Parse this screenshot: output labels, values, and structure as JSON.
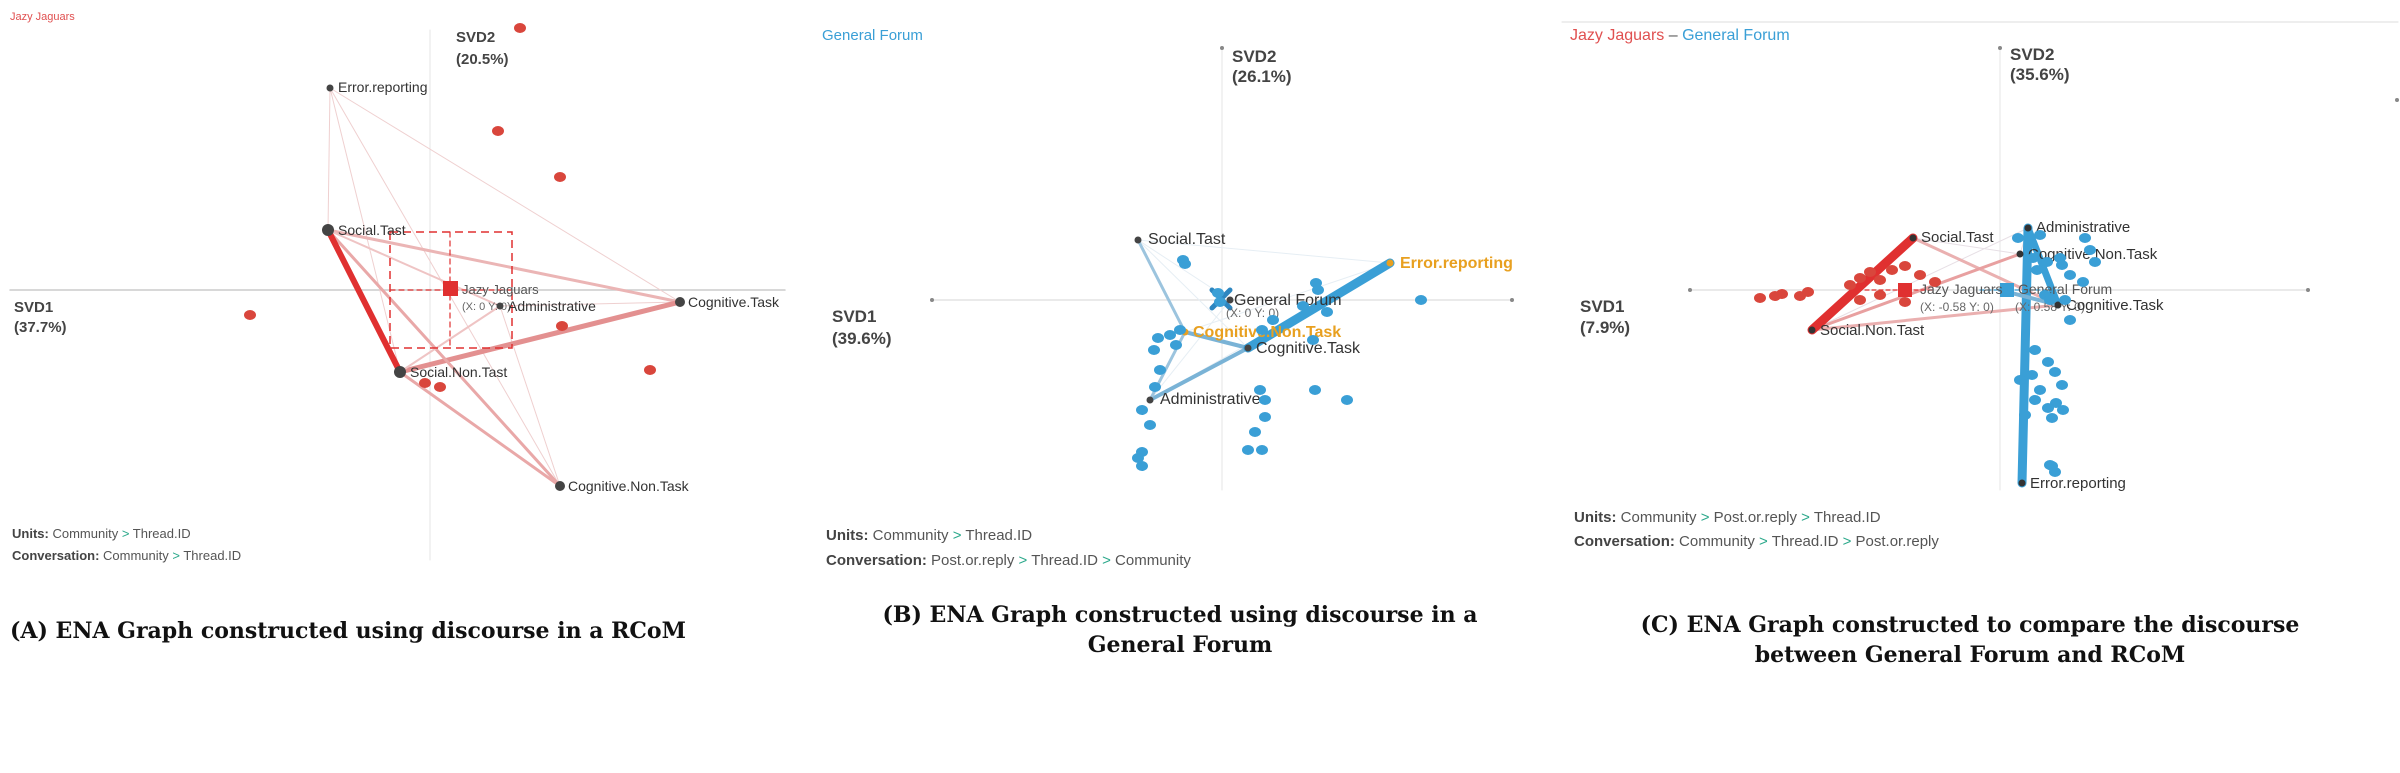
{
  "panels": [
    {
      "id": "a",
      "header_parts": [
        {
          "text": "Jazy Jaguars",
          "color": "#e05050"
        }
      ],
      "svd1": {
        "label": "SVD1",
        "pct": "(37.7%)"
      },
      "svd2": {
        "label": "SVD2",
        "pct": "(20.5%)"
      },
      "nodes": [
        {
          "label": "Error.reporting",
          "color": "#333333"
        },
        {
          "label": "Social.Tast",
          "color": "#333333"
        },
        {
          "label": "Administrative",
          "color": "#333333"
        },
        {
          "label": "Cognitive.Task",
          "color": "#333333"
        },
        {
          "label": "Social.Non.Tast",
          "color": "#333333"
        },
        {
          "label": "Cognitive.Non.Task",
          "color": "#333333"
        }
      ],
      "mean_labels": [
        {
          "text": "Jazy Jaguars",
          "color": "#555555"
        },
        {
          "text": "(X: 0 Y: 0)",
          "color": "#666666"
        }
      ],
      "units_line": [
        {
          "text": "Units: ",
          "bold": true
        },
        {
          "text": "Community"
        },
        {
          "text": " > ",
          "accent": true
        },
        {
          "text": "Thread.ID"
        }
      ],
      "conversation_line": [
        {
          "text": "Conversation: ",
          "bold": true
        },
        {
          "text": "Community"
        },
        {
          "text": " > ",
          "accent": true
        },
        {
          "text": "Thread.ID"
        }
      ],
      "caption": "(A)   ENA Graph constructed using discourse in a RCoM"
    },
    {
      "id": "b",
      "header_parts": [
        {
          "text": "General Forum",
          "color": "#3a9fd6"
        }
      ],
      "svd1": {
        "label": "SVD1",
        "pct": "(39.6%)"
      },
      "svd2": {
        "label": "SVD2",
        "pct": "(26.1%)"
      },
      "nodes": [
        {
          "label": "Social.Tast",
          "color": "#333333"
        },
        {
          "label": "Error.reporting",
          "color": "#e8a020"
        },
        {
          "label": "General Forum",
          "color": "#333333"
        },
        {
          "label": "Cognitive.Non.Task",
          "color": "#e8a020"
        },
        {
          "label": "Cognitive.Task",
          "color": "#333333"
        },
        {
          "label": "Administrative",
          "color": "#333333"
        }
      ],
      "mean_labels": [
        {
          "text": "(X: 0 Y: 0)",
          "color": "#666666"
        }
      ],
      "units_line": [
        {
          "text": "Units: ",
          "bold": true
        },
        {
          "text": "Community"
        },
        {
          "text": " > ",
          "accent": true
        },
        {
          "text": "Thread.ID"
        }
      ],
      "conversation_line": [
        {
          "text": "Conversation: ",
          "bold": true
        },
        {
          "text": "Post.or.reply"
        },
        {
          "text": " > ",
          "accent": true
        },
        {
          "text": "Thread.ID"
        },
        {
          "text": " > ",
          "accent": true
        },
        {
          "text": "Community"
        }
      ],
      "caption": "(B) ENA Graph constructed using discourse in a\nGeneral Forum"
    },
    {
      "id": "c",
      "header_parts": [
        {
          "text": "Jazy Jaguars",
          "color": "#e05050"
        },
        {
          "text": " – ",
          "color": "#555555"
        },
        {
          "text": "General Forum",
          "color": "#3a9fd6"
        }
      ],
      "svd1": {
        "label": "SVD1",
        "pct": "(7.9%)"
      },
      "svd2": {
        "label": "SVD2",
        "pct": "(35.6%)"
      },
      "nodes": [
        {
          "label": "Administrative",
          "color": "#333333"
        },
        {
          "label": "Social.Tast",
          "color": "#333333"
        },
        {
          "label": "Cognitive.Non.Task",
          "color": "#333333"
        },
        {
          "label": "Cognitive.Task",
          "color": "#333333"
        },
        {
          "label": "Social.Non.Tast",
          "color": "#333333"
        },
        {
          "label": "Error.reporting",
          "color": "#333333"
        }
      ],
      "mean_labels": [
        {
          "text": "Jazy Jaguars",
          "color": "#555555"
        },
        {
          "text": "General Forum",
          "color": "#555555"
        },
        {
          "text": "(X: -0.58 Y: 0)",
          "color": "#666666"
        },
        {
          "text": "(X: 0.58 Y: 0)",
          "color": "#666666"
        }
      ],
      "units_line": [
        {
          "text": "Units: ",
          "bold": true
        },
        {
          "text": "Community"
        },
        {
          "text": " > ",
          "accent": true
        },
        {
          "text": "Post.or.reply"
        },
        {
          "text": " > ",
          "accent": true
        },
        {
          "text": "Thread.ID"
        }
      ],
      "conversation_line": [
        {
          "text": "Conversation: ",
          "bold": true
        },
        {
          "text": "Community"
        },
        {
          "text": " > ",
          "accent": true
        },
        {
          "text": "Thread.ID"
        },
        {
          "text": " > ",
          "accent": true
        },
        {
          "text": "Post.or.reply"
        }
      ],
      "caption": "(C) ENA Graph constructed to compare the discourse\nbetween General Forum and RCoM"
    }
  ],
  "colors": {
    "red": "#e03030",
    "red_light": "#e8a0a0",
    "blue": "#3a9fd6",
    "accent": "#2aa88a",
    "axis": "#cccccc"
  }
}
